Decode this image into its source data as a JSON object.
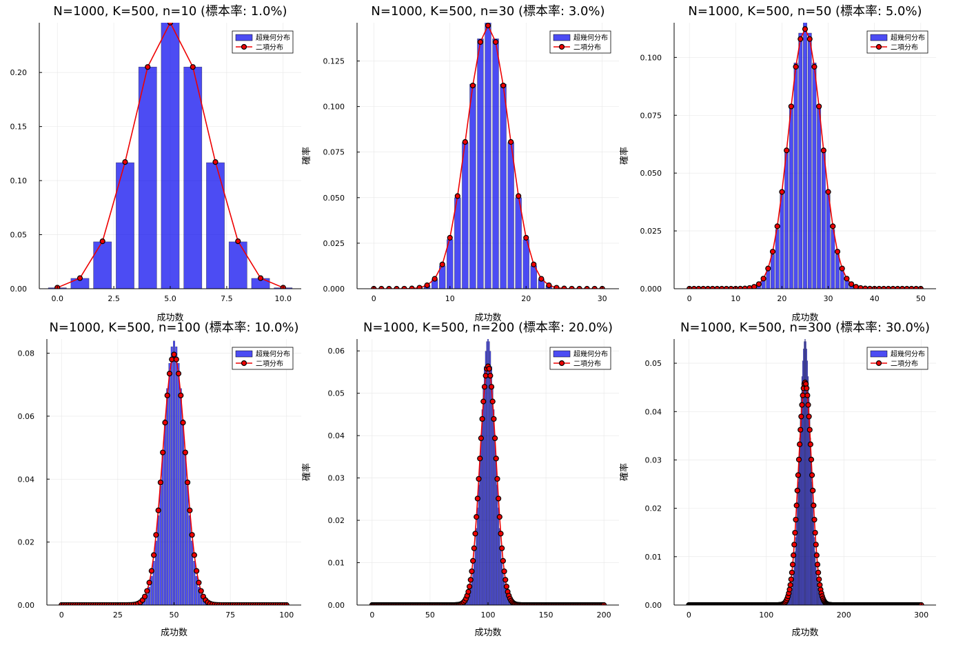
{
  "colors": {
    "hypergeometric": "#0000ee",
    "binomial": "#ee0000",
    "marker_stroke": "#000000",
    "grid": "#e6e6e6"
  },
  "chart_data": [
    {
      "type": "bar",
      "title": "N=1000, K=500, n=10 (標本率: 1.0%)",
      "xlabel": "成功数",
      "ylabel": "",
      "N": 1000,
      "K": 500,
      "n": 10,
      "xlim": [
        -0.8,
        10.8
      ],
      "ylim": [
        0,
        0.246
      ],
      "xticks": [
        "0.0",
        "2.5",
        "5.0",
        "7.5",
        "10.0"
      ],
      "yticks": [
        "0.00",
        "0.05",
        "0.10",
        "0.15",
        "0.20"
      ],
      "legend": "top-right",
      "series": [
        {
          "name": "超幾何分布",
          "kind": "bar",
          "x": [
            0,
            1,
            2,
            3,
            4,
            5,
            6,
            7,
            8,
            9,
            10
          ],
          "values": [
            0.0009,
            0.0096,
            0.0434,
            0.1166,
            0.2051,
            0.2488,
            0.2051,
            0.1166,
            0.0434,
            0.0096,
            0.0009
          ]
        },
        {
          "name": "二項分布",
          "kind": "line-marker",
          "x": [
            0,
            1,
            2,
            3,
            4,
            5,
            6,
            7,
            8,
            9,
            10
          ],
          "values": [
            0.001,
            0.0098,
            0.0439,
            0.1172,
            0.2051,
            0.2461,
            0.2051,
            0.1172,
            0.0439,
            0.0098,
            0.001
          ]
        }
      ]
    },
    {
      "type": "bar",
      "title": "N=1000, K=500, n=30 (標本率: 3.0%)",
      "xlabel": "成功数",
      "ylabel": "確率",
      "N": 1000,
      "K": 500,
      "n": 30,
      "xlim": [
        -2.2,
        32.2
      ],
      "ylim": [
        0,
        0.146
      ],
      "xticks": [
        "0",
        "10",
        "20",
        "30"
      ],
      "yticks": [
        "0.000",
        "0.025",
        "0.050",
        "0.075",
        "0.100",
        "0.125"
      ],
      "legend": "top-right",
      "series": [
        {
          "name": "超幾何分布",
          "kind": "bar"
        },
        {
          "name": "二項分布",
          "kind": "line-marker"
        }
      ]
    },
    {
      "type": "bar",
      "title": "N=1000, K=500, n=50 (標本率: 5.0%)",
      "xlabel": "成功数",
      "ylabel": "確率",
      "N": 1000,
      "K": 500,
      "n": 50,
      "xlim": [
        -3.3,
        53.3
      ],
      "ylim": [
        0,
        0.115
      ],
      "xticks": [
        "0",
        "10",
        "20",
        "30",
        "40",
        "50"
      ],
      "yticks": [
        "0.000",
        "0.025",
        "0.050",
        "0.075",
        "0.100"
      ],
      "legend": "top-right",
      "series": [
        {
          "name": "超幾何分布",
          "kind": "bar"
        },
        {
          "name": "二項分布",
          "kind": "line-marker"
        }
      ]
    },
    {
      "type": "bar",
      "title": "N=1000, K=500, n=100 (標本率: 10.0%)",
      "xlabel": "成功数",
      "ylabel": "",
      "N": 1000,
      "K": 500,
      "n": 100,
      "xlim": [
        -6.5,
        106.5
      ],
      "ylim": [
        0,
        0.0845
      ],
      "xticks": [
        "0",
        "25",
        "50",
        "75",
        "100"
      ],
      "yticks": [
        "0.00",
        "0.02",
        "0.04",
        "0.06",
        "0.08"
      ],
      "legend": "top-right",
      "series": [
        {
          "name": "超幾何分布",
          "kind": "bar"
        },
        {
          "name": "二項分布",
          "kind": "line-marker"
        }
      ]
    },
    {
      "type": "bar",
      "title": "N=1000, K=500, n=200 (標本率: 20.0%)",
      "xlabel": "成功数",
      "ylabel": "確率",
      "N": 1000,
      "K": 500,
      "n": 200,
      "xlim": [
        -13,
        213
      ],
      "ylim": [
        0,
        0.0628
      ],
      "xticks": [
        "0",
        "50",
        "100",
        "150",
        "200"
      ],
      "yticks": [
        "0.00",
        "0.01",
        "0.02",
        "0.03",
        "0.04",
        "0.05",
        "0.06"
      ],
      "legend": "top-right",
      "series": [
        {
          "name": "超幾何分布",
          "kind": "bar"
        },
        {
          "name": "二項分布",
          "kind": "line-marker"
        }
      ]
    },
    {
      "type": "bar",
      "title": "N=1000, K=500, n=300 (標本率: 30.0%)",
      "xlabel": "成功数",
      "ylabel": "確率",
      "N": 1000,
      "K": 500,
      "n": 300,
      "xlim": [
        -19,
        319
      ],
      "ylim": [
        0,
        0.055
      ],
      "xticks": [
        "0",
        "100",
        "200",
        "300"
      ],
      "yticks": [
        "0.00",
        "0.01",
        "0.02",
        "0.03",
        "0.04",
        "0.05"
      ],
      "legend": "top-right",
      "series": [
        {
          "name": "超幾何分布",
          "kind": "bar"
        },
        {
          "name": "二項分布",
          "kind": "line-marker"
        }
      ]
    }
  ]
}
